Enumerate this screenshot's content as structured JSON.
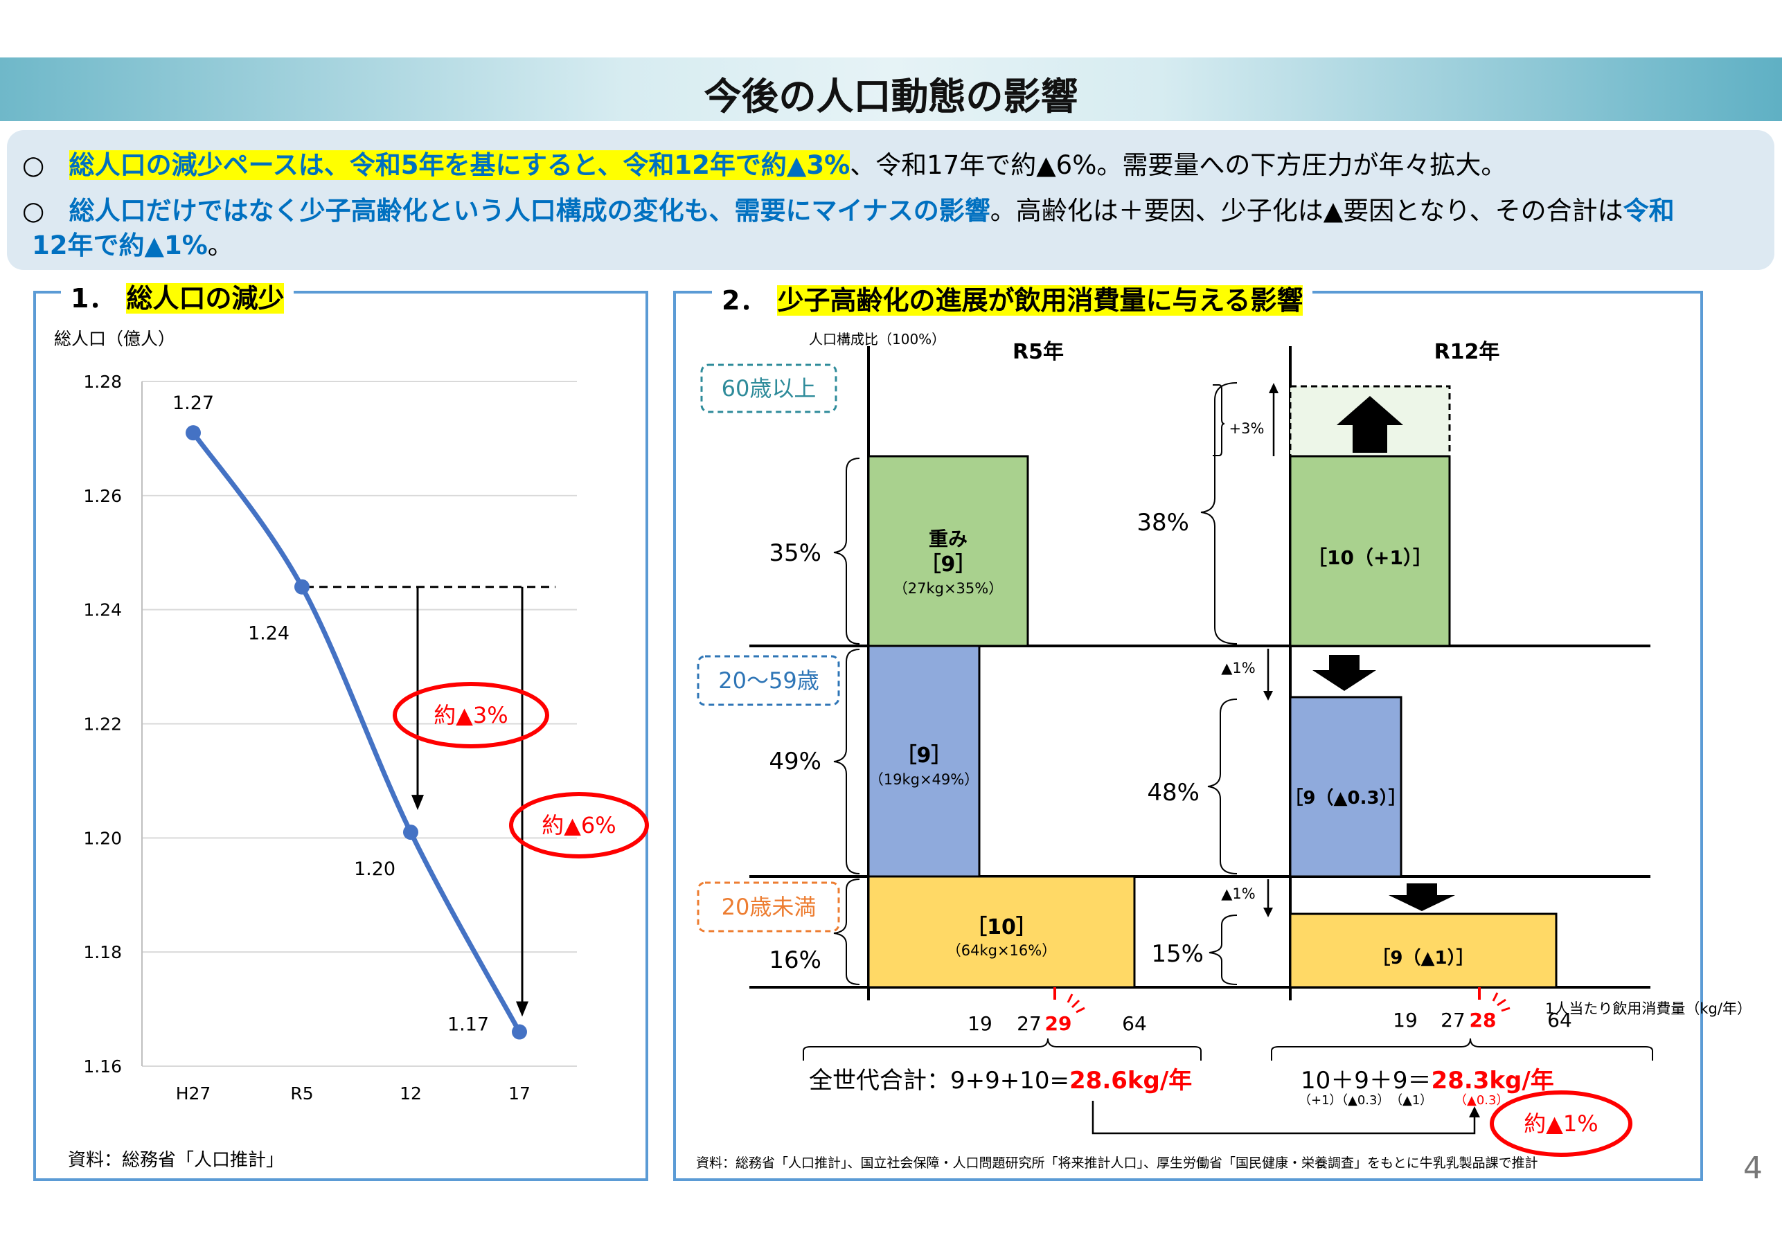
{
  "title": "今後の人口動態の影響",
  "bullets": {
    "b1": {
      "mark": "○",
      "hl": "総人口の減少ペースは、令和5年を基にすると、令和12年で約▲3%",
      "rest": "、令和17年で約▲6%。需要量への下方圧力が年々拡大。"
    },
    "b2": {
      "mark": "○",
      "hl": "総人口だけではなく少子高齢化という人口構成の変化も、需要にマイナスの影響",
      "rest": "。高齢化は＋要因、少子化は▲要因となり、その合計は",
      "tail_blue_a": "令和",
      "tail_blue_b": "12年で約▲1%",
      "tail_end": "。"
    }
  },
  "section1": {
    "num": "1．",
    "title": "総人口の減少",
    "source": "資料：総務省「人口推計」"
  },
  "section2": {
    "num": "2．",
    "title": "少子高齢化の進展が飲用消費量に与える影響",
    "source": "資料：総務省「人口推計」、国立社会保障・人口問題研究所「将来推計人口」、厚生労働省「国民健康・栄養調査」をもとに牛乳乳製品課で推計"
  },
  "page_number": "4",
  "colors": {
    "line": "#4472c4",
    "green": "#a9d18e",
    "blue": "#8faadc",
    "yellow": "#ffd966",
    "red": "#ff0000",
    "teal": "#2e8b9a",
    "orange": "#ed7d31",
    "navy": "#2e75b6"
  },
  "chart_data": [
    {
      "type": "line",
      "ylabel": "総人口（億人）",
      "categories": [
        "H27",
        "R5",
        "12",
        "17"
      ],
      "values": [
        1.27,
        1.24,
        1.2,
        1.17
      ],
      "point_values": [
        1.271,
        1.244,
        1.201,
        1.166
      ],
      "yticks": [
        "1.28",
        "1.26",
        "1.24",
        "1.22",
        "1.20",
        "1.18",
        "1.16"
      ],
      "ylim": [
        1.16,
        1.28
      ],
      "grid": true,
      "annotations": [
        "約▲3%",
        "約▲6%"
      ]
    },
    {
      "type": "bar",
      "ylabel": "人口構成比（100%）",
      "xlabel": "1人当たり飲用消費量（kg/年）",
      "panels": [
        {
          "name": "R5年",
          "groups": [
            {
              "group": "60歳以上",
              "share_pct": 35,
              "share_label": "35%",
              "intake_kg": 27,
              "weight": 9,
              "box_top": "重み",
              "label": "［9］",
              "sub": "（27kg×35%）"
            },
            {
              "group": "20～59歳",
              "share_pct": 49,
              "share_label": "49%",
              "intake_kg": 19,
              "weight": 9,
              "label": "［9］",
              "sub": "（19kg×49%）"
            },
            {
              "group": "20歳未満",
              "share_pct": 16,
              "share_label": "16%",
              "intake_kg": 64,
              "weight": 10,
              "label": "［10］",
              "sub": "（64kg×16%）"
            }
          ],
          "xticks": [
            "19",
            "27",
            "29",
            "64"
          ],
          "total": "全世代合計：9+9+10=",
          "total_value": "28.6kg/年"
        },
        {
          "name": "R12年",
          "groups": [
            {
              "group": "60歳以上",
              "share_pct": 38,
              "share_label": "38%",
              "change": "+3%",
              "weight": 10,
              "label": "［10（+1）］"
            },
            {
              "group": "20～59歳",
              "share_pct": 48,
              "share_label": "48%",
              "change": "▲1%",
              "weight": 9,
              "label": "［9（▲0.3）］"
            },
            {
              "group": "20歳未満",
              "share_pct": 15,
              "share_label": "15%",
              "change": "▲1%",
              "weight": 9,
              "label": "［9（▲1）］"
            }
          ],
          "xticks": [
            "19",
            "27",
            "28",
            "64"
          ],
          "total": "10＋9＋9＝",
          "total_value": "28.3kg/年",
          "total_notes": [
            "（+1）",
            "（▲0.3）",
            "（▲1）",
            "（▲0.3）"
          ]
        }
      ],
      "age_groups": [
        "60歳以上",
        "20～59歳",
        "20歳未満"
      ],
      "annotation": "約▲1%"
    }
  ]
}
